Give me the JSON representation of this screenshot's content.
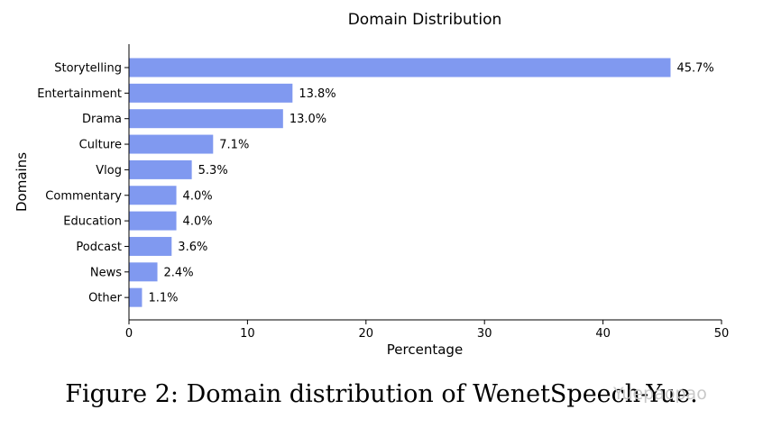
{
  "chart_data": {
    "type": "bar",
    "orientation": "horizontal",
    "title": "Domain Distribution",
    "xlabel": "Percentage",
    "ylabel": "Domains",
    "xlim": [
      0,
      50
    ],
    "xticks": [
      0,
      10,
      20,
      30,
      40,
      50
    ],
    "categories": [
      "Storytelling",
      "Entertainment",
      "Drama",
      "Culture",
      "Vlog",
      "Commentary",
      "Education",
      "Podcast",
      "News",
      "Other"
    ],
    "values": [
      45.7,
      13.8,
      13.0,
      7.1,
      5.3,
      4.0,
      4.0,
      3.6,
      2.4,
      1.1
    ],
    "value_labels": [
      "45.7%",
      "13.8%",
      "13.0%",
      "7.1%",
      "5.3%",
      "4.0%",
      "4.0%",
      "3.6%",
      "2.4%",
      "1.1%"
    ],
    "bar_color": "#8099f0",
    "grid": false
  },
  "caption": "Figure 2: Domain distribution of WenetSpeech-Yue.",
  "watermark": "Yuepaopao"
}
